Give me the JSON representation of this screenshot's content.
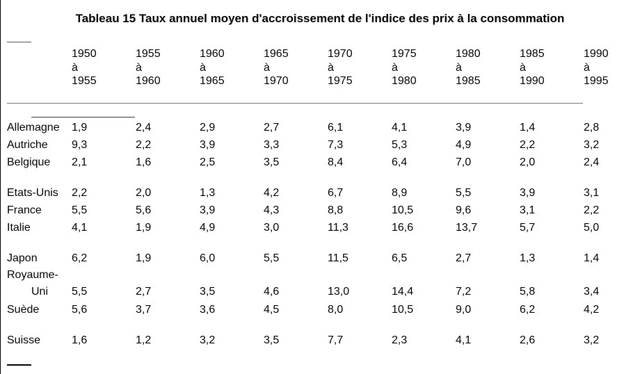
{
  "title": "Tableau 15 Taux annuel moyen d'accroissement de l'indice des prix à la consommation",
  "table": {
    "headers": [
      {
        "from": "1950",
        "sep": "à",
        "to": "1955"
      },
      {
        "from": "1955",
        "sep": "à",
        "to": "1960"
      },
      {
        "from": "1960",
        "sep": "à",
        "to": "1965"
      },
      {
        "from": "1965",
        "sep": "à",
        "to": "1970"
      },
      {
        "from": "1970",
        "sep": "à",
        "to": "1975"
      },
      {
        "from": "1975",
        "sep": "à",
        "to": "1980"
      },
      {
        "from": "1980",
        "sep": "à",
        "to": "1985"
      },
      {
        "from": "1985",
        "sep": "à",
        "to": "1990"
      },
      {
        "from": "1990",
        "sep": "à",
        "to": "1995"
      }
    ],
    "rows": [
      {
        "country": "Allemagne",
        "values": [
          "1,9",
          "2,4",
          "2,9",
          "2,7",
          "6,1",
          "4,1",
          "3,9",
          "1,4",
          "2,8"
        ]
      },
      {
        "country": "Autriche",
        "values": [
          "9,3",
          "2,2",
          "3,9",
          "3,3",
          "7,3",
          "5,3",
          "4,9",
          "2,2",
          "3,2"
        ]
      },
      {
        "country": "Belgique",
        "values": [
          "2,1",
          "1,6",
          "2,5",
          "3,5",
          "8,4",
          "6,4",
          "7,0",
          "2,0",
          "2,4"
        ]
      },
      {
        "country": "Etats-Unis",
        "values": [
          "2,2",
          "2,0",
          "1,3",
          "4,2",
          "6,7",
          "8,9",
          "5,5",
          "3,9",
          "3,1"
        ]
      },
      {
        "country": "France",
        "values": [
          "5,5",
          "5,6",
          "3,9",
          "4,3",
          "8,8",
          "10,5",
          "9,6",
          "3,1",
          "2,2"
        ]
      },
      {
        "country": "Italie",
        "values": [
          "4,1",
          "1,9",
          "4,9",
          "3,0",
          "11,3",
          "16,6",
          "13,7",
          "5,7",
          "5,0"
        ]
      },
      {
        "country": "Japon",
        "values": [
          "6,2",
          "1,9",
          "6,0",
          "5,5",
          "11,5",
          "6,5",
          "2,7",
          "1,3",
          "1,4"
        ]
      },
      {
        "country": "Royaume-Uni",
        "country_line1": "Royaume-",
        "country_line2": "Uni",
        "values": [
          "5,5",
          "2,7",
          "3,5",
          "4,6",
          "13,0",
          "14,4",
          "7,2",
          "5,8",
          "3,4"
        ]
      },
      {
        "country": "Suède",
        "values": [
          "5,6",
          "3,7",
          "3,6",
          "4,5",
          "8,0",
          "10,5",
          "9,0",
          "6,2",
          "4,2"
        ]
      },
      {
        "country": "Suisse",
        "values": [
          "1,6",
          "1,2",
          "3,2",
          "3,5",
          "7,7",
          "2,3",
          "4,1",
          "2,6",
          "3,2"
        ]
      }
    ]
  }
}
